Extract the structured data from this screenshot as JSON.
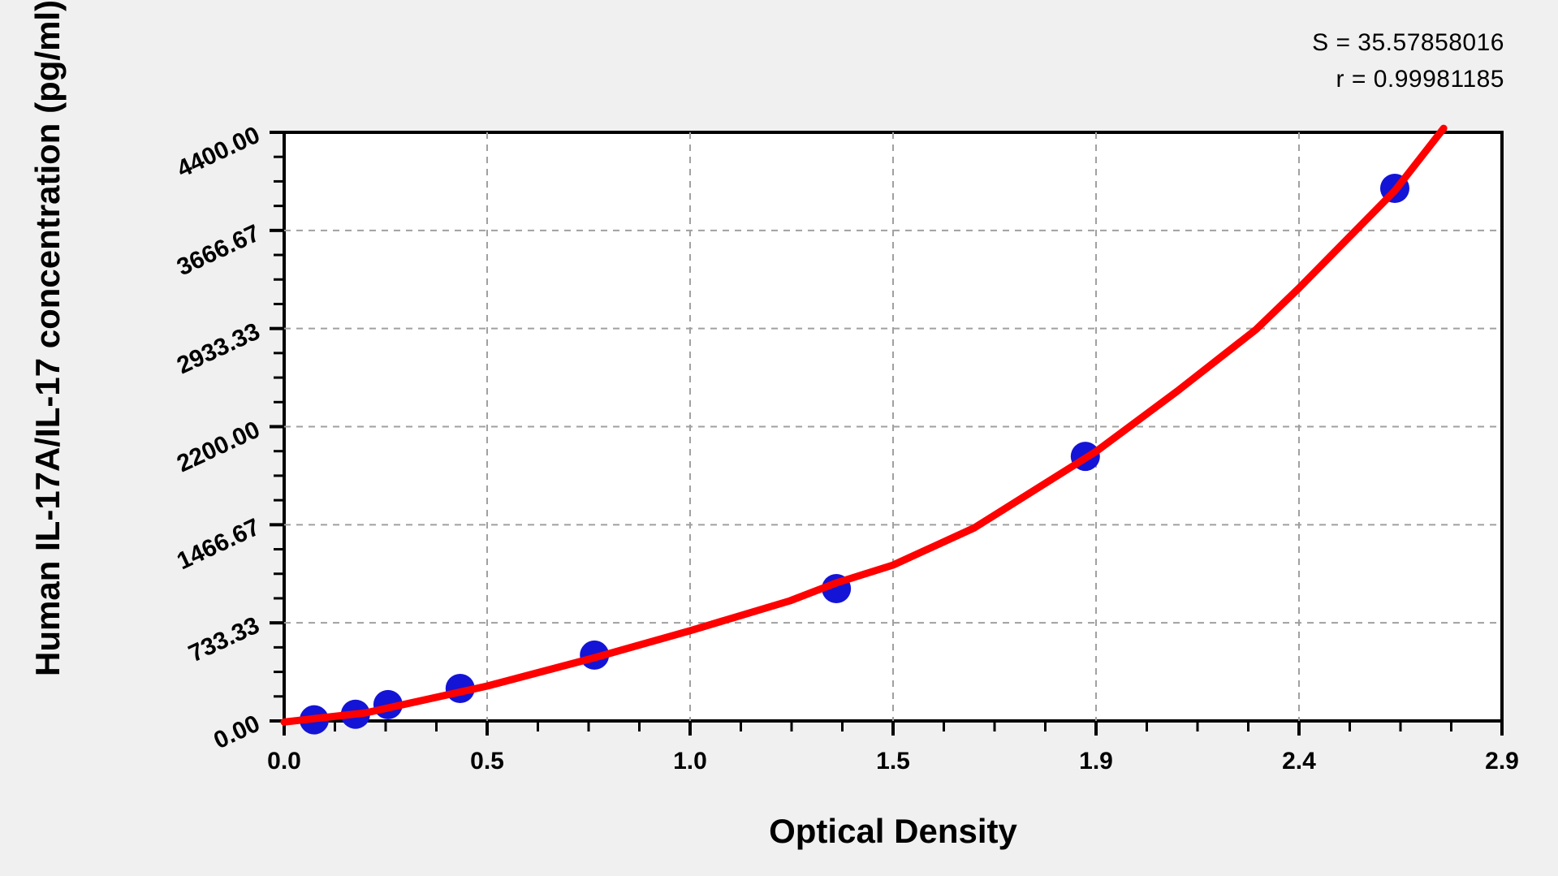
{
  "stats": {
    "s_line": "S = 35.57858016",
    "r_line": "r = 0.99981185"
  },
  "x_axis": {
    "title": "Optical Density",
    "tick_labels": [
      "0.0",
      "0.5",
      "1.0",
      "1.5",
      "1.9",
      "2.4",
      "2.9"
    ],
    "tick_values": [
      0,
      0.4867,
      0.9733,
      1.46,
      1.9467,
      2.4333,
      2.92
    ],
    "minor_divisions": 4
  },
  "y_axis": {
    "title": "Human IL-17A/IL-17 concentration (pg/ml)",
    "tick_labels": [
      "0.00",
      "733.33",
      "1466.67",
      "2200.00",
      "2933.33",
      "3666.67",
      "4400.00"
    ],
    "tick_values": [
      0,
      733.33,
      1466.67,
      2200.0,
      2933.33,
      3666.67,
      4400.0
    ],
    "minor_divisions": 4
  },
  "chart_data": {
    "type": "scatter",
    "title": "",
    "xlabel": "Optical Density",
    "ylabel": "Human IL-17A/IL-17 concentration (pg/ml)",
    "xlim": [
      0,
      2.92
    ],
    "ylim": [
      0,
      4400
    ],
    "grid": "dashed at major ticks",
    "legend": "none",
    "fit_stats": {
      "S": 35.57858016,
      "r": 0.99981185
    },
    "points": [
      {
        "od": 0.072,
        "conc": 8
      },
      {
        "od": 0.171,
        "conc": 50
      },
      {
        "od": 0.249,
        "conc": 122
      },
      {
        "od": 0.422,
        "conc": 243
      },
      {
        "od": 0.744,
        "conc": 492
      },
      {
        "od": 1.324,
        "conc": 989
      },
      {
        "od": 1.921,
        "conc": 1978
      },
      {
        "od": 2.663,
        "conc": 3981
      }
    ],
    "curve": [
      [
        0.0,
        -8
      ],
      [
        0.195,
        60
      ],
      [
        0.487,
        261
      ],
      [
        0.744,
        473
      ],
      [
        0.973,
        674
      ],
      [
        1.213,
        898
      ],
      [
        1.324,
        1032
      ],
      [
        1.46,
        1165
      ],
      [
        1.655,
        1444
      ],
      [
        1.947,
        2015
      ],
      [
        2.141,
        2464
      ],
      [
        2.33,
        2925
      ],
      [
        2.433,
        3235
      ],
      [
        2.663,
        3963
      ],
      [
        2.78,
        4430
      ]
    ]
  },
  "colors": {
    "background": "#f0f0f0",
    "plot_background": "#ffffff",
    "frame": "#000000",
    "grid": "#a0a0a0",
    "curve": "#ff0000",
    "point": "#1414d6"
  }
}
